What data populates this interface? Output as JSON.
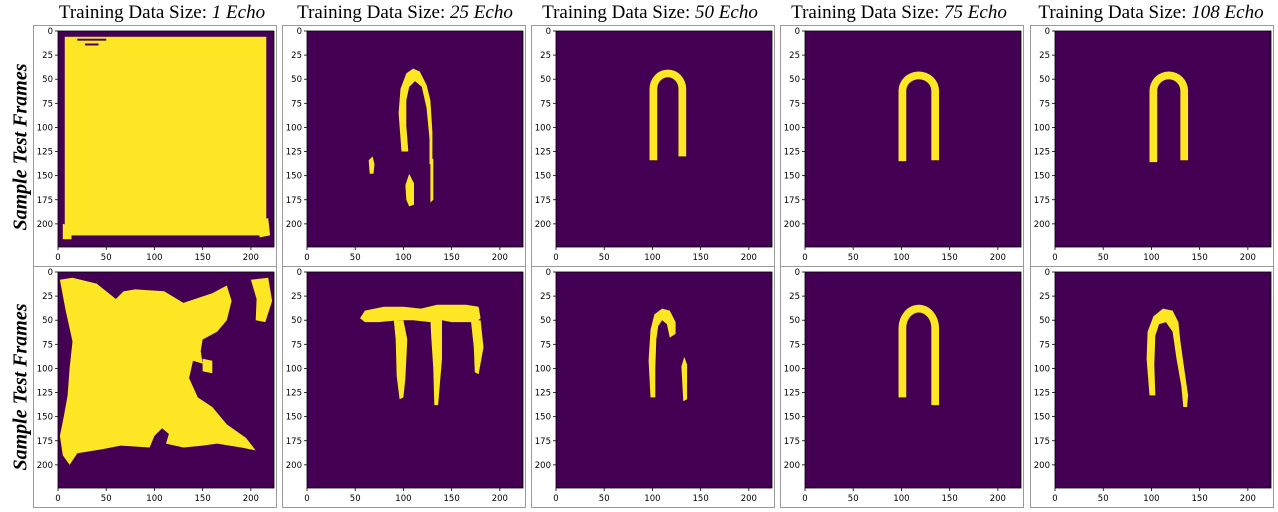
{
  "columns": [
    {
      "label": "Training Data Size: ",
      "value": "1 Echo"
    },
    {
      "label": "Training Data Size: ",
      "value": "25 Echo"
    },
    {
      "label": "Training Data Size: ",
      "value": "50 Echo"
    },
    {
      "label": "Training Data Size: ",
      "value": "75 Echo"
    },
    {
      "label": "Training Data Size: ",
      "value": "108 Echo"
    }
  ],
  "rows": [
    {
      "label": "Sample Test Frames"
    },
    {
      "label": "Sample Test Frames"
    }
  ],
  "axes": {
    "y_ticks": [
      "0",
      "25",
      "50",
      "75",
      "100",
      "125",
      "150",
      "175",
      "200"
    ],
    "x_ticks": [
      "0",
      "50",
      "100",
      "150",
      "200"
    ]
  },
  "colors": {
    "background_class": "#440154",
    "mask_class": "#fde725"
  }
}
